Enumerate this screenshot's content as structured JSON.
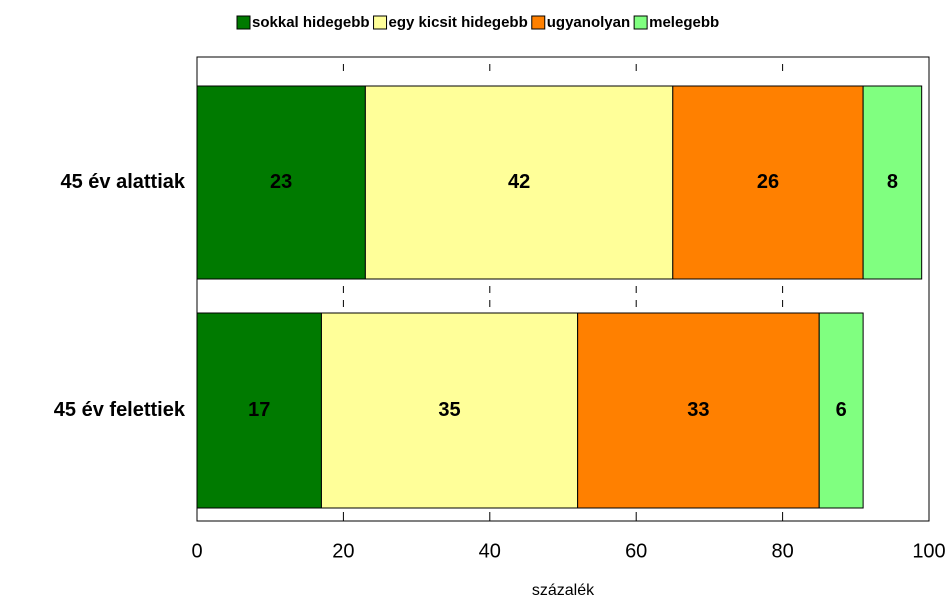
{
  "chart_data": {
    "type": "stacked_bar_horizontal",
    "categories": [
      "45 év alattiak",
      "45 év felettiek"
    ],
    "series": [
      {
        "name": "sokkal hidegebb",
        "color": "#007a00",
        "values": [
          23,
          17
        ]
      },
      {
        "name": "egy kicsit hidegebb",
        "color": "#ffff99",
        "values": [
          42,
          35
        ]
      },
      {
        "name": "ugyanolyan",
        "color": "#ff8000",
        "values": [
          26,
          33
        ]
      },
      {
        "name": "melegebb",
        "color": "#80ff80",
        "values": [
          8,
          6
        ]
      }
    ],
    "xlim": [
      0,
      100
    ],
    "xticks": [
      0,
      20,
      40,
      60,
      80,
      100
    ],
    "xlabel": "százalék",
    "legend": "top"
  }
}
